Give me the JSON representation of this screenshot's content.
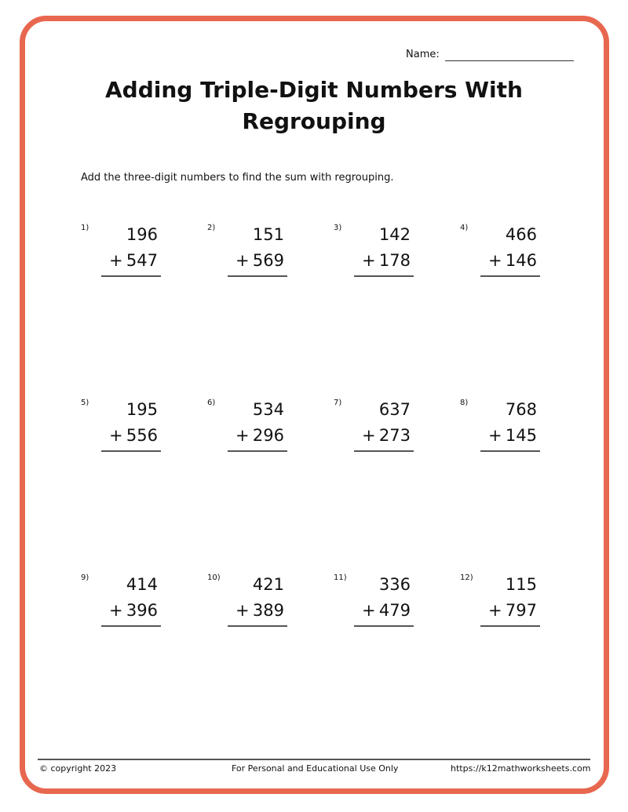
{
  "colors": {
    "border": "#e8674f"
  },
  "header": {
    "name_label": "Name:"
  },
  "title": "Adding Triple-Digit Numbers With Regrouping",
  "instructions": "Add the three-digit numbers to find the sum with regrouping.",
  "problems": [
    {
      "label": "1)",
      "top": "196",
      "bottom": "547",
      "op": "+"
    },
    {
      "label": "2)",
      "top": "151",
      "bottom": "569",
      "op": "+"
    },
    {
      "label": "3)",
      "top": "142",
      "bottom": "178",
      "op": "+"
    },
    {
      "label": "4)",
      "top": "466",
      "bottom": "146",
      "op": "+"
    },
    {
      "label": "5)",
      "top": "195",
      "bottom": "556",
      "op": "+"
    },
    {
      "label": "6)",
      "top": "534",
      "bottom": "296",
      "op": "+"
    },
    {
      "label": "7)",
      "top": "637",
      "bottom": "273",
      "op": "+"
    },
    {
      "label": "8)",
      "top": "768",
      "bottom": "145",
      "op": "+"
    },
    {
      "label": "9)",
      "top": "414",
      "bottom": "396",
      "op": "+"
    },
    {
      "label": "10)",
      "top": "421",
      "bottom": "389",
      "op": "+"
    },
    {
      "label": "11)",
      "top": "336",
      "bottom": "479",
      "op": "+"
    },
    {
      "label": "12)",
      "top": "115",
      "bottom": "797",
      "op": "+"
    }
  ],
  "footer": {
    "copyright": "© copyright 2023",
    "usage": "For Personal and Educational Use Only",
    "url": "https://k12mathworksheets.com"
  }
}
